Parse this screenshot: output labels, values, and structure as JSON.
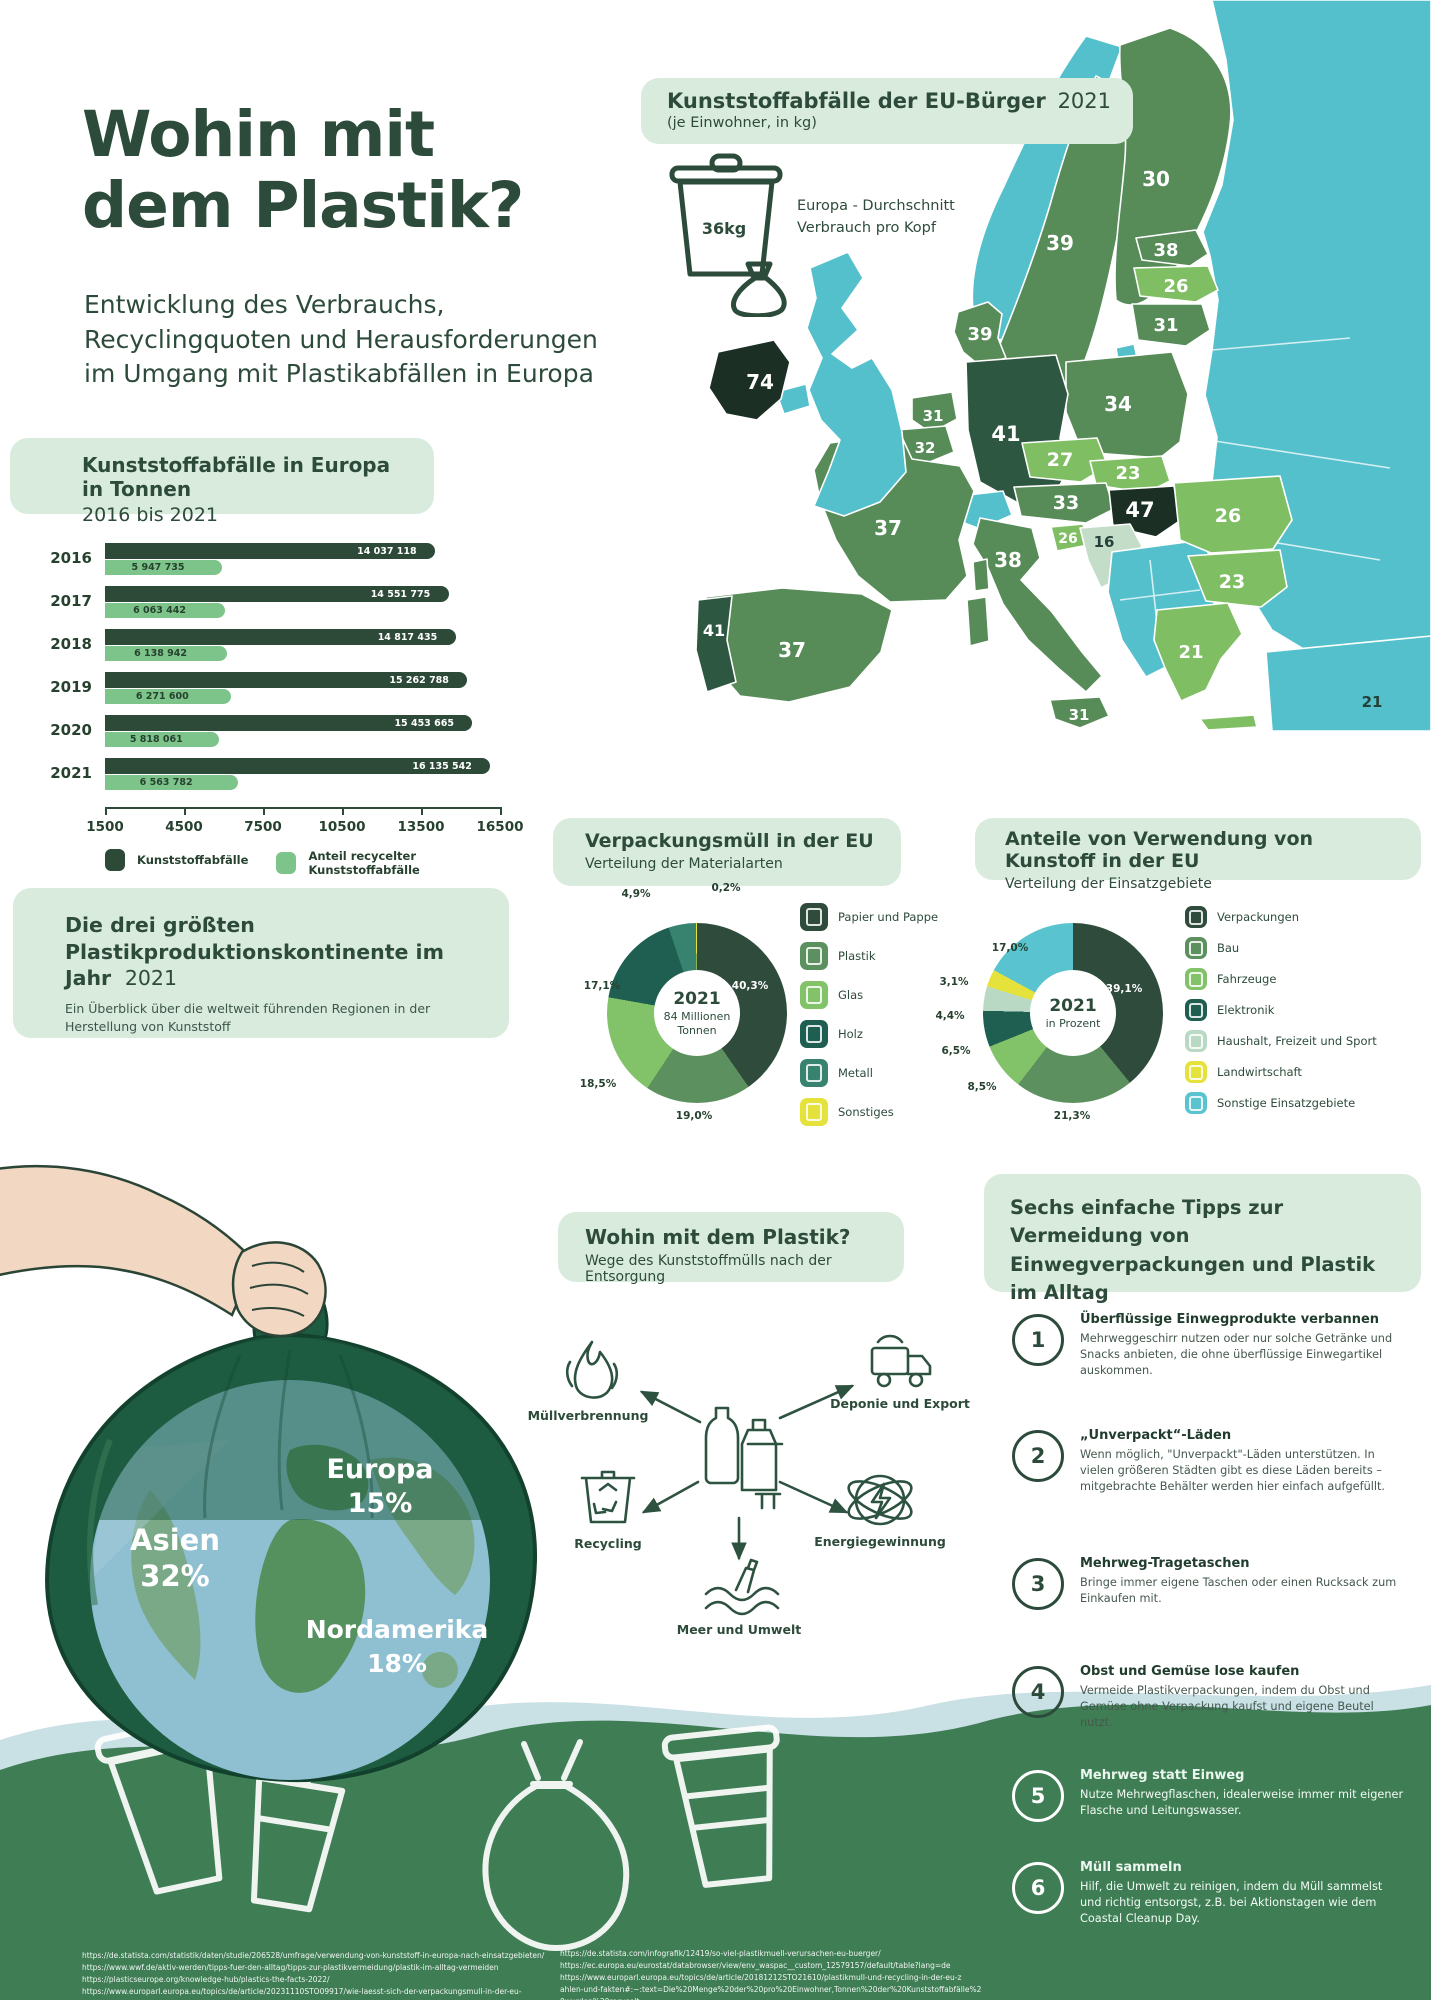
{
  "page": {
    "title": "Wohin mit dem Plastik?",
    "subtitle": "Entwicklung des Verbrauchs, Recyclingquoten und Herausforderungen im Umgang mit Plastikabfällen in Europa"
  },
  "colors": {
    "ink": "#2d4b3a",
    "mint": "#d9ebdd",
    "map_darkest": "#1b2f25",
    "map_dark": "#2e5741",
    "map_mid": "#578b58",
    "map_light": "#7fbe62",
    "map_pale": "#c3ddc9",
    "map_noneu": "#54c0cc",
    "bar_dark": "#2d4a39",
    "bar_light": "#7cc489",
    "wave_green": "#3f7e55",
    "wave_blue": "#c9e0e5",
    "yellow": "#e6e23c"
  },
  "chart_data": [
    {
      "type": "bar",
      "title": "Kunststoffabfälle in Europa in Tonnen",
      "subtitle": "2016 bis 2021",
      "categories": [
        "2016",
        "2017",
        "2018",
        "2019",
        "2020",
        "2021"
      ],
      "series": [
        {
          "name": "Kunststoffabfälle",
          "values": [
            14037118,
            14551775,
            14817435,
            15262788,
            15453665,
            16135542
          ]
        },
        {
          "name": "Anteil recycelter Kunststoffabfälle",
          "values": [
            5947735,
            6063442,
            6138942,
            6271600,
            5818061,
            6563782
          ]
        }
      ],
      "xticks": [
        1500,
        4500,
        7500,
        10500,
        13500,
        16500
      ],
      "axis_unit": "Tausend Tonnen",
      "legend_position": "bottom",
      "grid": false
    },
    {
      "type": "pie",
      "title": "Verpackungsmüll in der EU",
      "subtitle": "Verteilung der Materialarten",
      "center": [
        "2021",
        "84 Millionen",
        "Tonnen"
      ],
      "segments": [
        {
          "label": "Papier und Pappe",
          "value": 40.3,
          "pct": "40,3%",
          "color": "#2e4b3c"
        },
        {
          "label": "Plastik",
          "value": 19.0,
          "pct": "19,0%",
          "color": "#5c915f"
        },
        {
          "label": "Glas",
          "value": 18.5,
          "pct": "18,5%",
          "color": "#82c268"
        },
        {
          "label": "Holz",
          "value": 17.1,
          "pct": "17,1%",
          "color": "#1f5f52"
        },
        {
          "label": "Metall",
          "value": 4.9,
          "pct": "4,9%",
          "color": "#37836f"
        },
        {
          "label": "Sonstiges",
          "value": 0.2,
          "pct": "0,2%",
          "color": "#e6e23c"
        }
      ]
    },
    {
      "type": "pie",
      "title": "Anteile von Verwendung von Kunstoff in der EU",
      "subtitle": "Verteilung der Einsatzgebiete",
      "center": [
        "2021",
        "in Prozent"
      ],
      "segments": [
        {
          "label": "Verpackungen",
          "value": 39.1,
          "pct": "39,1%",
          "color": "#2e4b3c"
        },
        {
          "label": "Bau",
          "value": 21.3,
          "pct": "21,3%",
          "color": "#5c915f"
        },
        {
          "label": "Fahrzeuge",
          "value": 8.5,
          "pct": "8,5%",
          "color": "#82c268"
        },
        {
          "label": "Elektronik",
          "value": 6.5,
          "pct": "6,5%",
          "color": "#1f5f52"
        },
        {
          "label": "Haushalt, Freizeit und Sport",
          "value": 4.4,
          "pct": "4,4%",
          "color": "#bad9c4"
        },
        {
          "label": "Landwirtschaft",
          "value": 3.1,
          "pct": "3,1%",
          "color": "#e6e23c"
        },
        {
          "label": "Sonstige Einsatzgebiete",
          "value": 17.0,
          "pct": "17,0%",
          "color": "#59c3cf"
        }
      ]
    },
    {
      "type": "map-choropleth",
      "title": "Kunststoffabfälle der EU-Bürger",
      "year": "2021",
      "unit": "(je Einwohner, in kg)",
      "average_badge": "36kg",
      "average_caption": "Europa - Durchschnitt Verbrauch pro Kopf",
      "countries": [
        {
          "name": "Irland",
          "value": 74
        },
        {
          "name": "Finnland",
          "value": 30
        },
        {
          "name": "Schweden",
          "value": 39
        },
        {
          "name": "Dänemark",
          "value": 39
        },
        {
          "name": "Estland",
          "value": 38
        },
        {
          "name": "Lettland",
          "value": 26
        },
        {
          "name": "Litauen",
          "value": 31
        },
        {
          "name": "Niederlande",
          "value": 31
        },
        {
          "name": "Belgien",
          "value": 32
        },
        {
          "name": "Deutschland",
          "value": 41
        },
        {
          "name": "Polen",
          "value": 34
        },
        {
          "name": "Tschechien",
          "value": 27
        },
        {
          "name": "Slowakei",
          "value": 23
        },
        {
          "name": "Österreich",
          "value": 33
        },
        {
          "name": "Ungarn",
          "value": 47
        },
        {
          "name": "Slowenien",
          "value": 26
        },
        {
          "name": "Kroatien",
          "value": 16
        },
        {
          "name": "Rumänien",
          "value": 26
        },
        {
          "name": "Bulgarien",
          "value": 23
        },
        {
          "name": "Italien",
          "value": 38
        },
        {
          "name": "Frankreich",
          "value": 37
        },
        {
          "name": "Spanien",
          "value": 37
        },
        {
          "name": "Portugal",
          "value": 41
        },
        {
          "name": "Griechenland",
          "value": 21
        },
        {
          "name": "Malta",
          "value": 31
        },
        {
          "name": "Zypern",
          "value": 21
        }
      ]
    }
  ],
  "continents": {
    "heading_bold": "Die drei größten Plastikproduktionskontinente im Jahr",
    "heading_year": "2021",
    "sub": "Ein Überblick über die weltweit führenden Regionen in der Herstellung von Kunststoff",
    "items": [
      {
        "name": "Asien",
        "pct": "32%"
      },
      {
        "name": "Europa",
        "pct": "15%"
      },
      {
        "name": "Nordamerika",
        "pct": "18%"
      }
    ]
  },
  "flow": {
    "heading": "Wohin mit dem Plastik?",
    "sub": "Wege des Kunststoffmülls nach der Entsorgung",
    "nodes": [
      {
        "label": "Müllverbrennung"
      },
      {
        "label": "Deponie und Export"
      },
      {
        "label": "Recycling"
      },
      {
        "label": "Energiegewinnung"
      },
      {
        "label": "Meer und Umwelt"
      }
    ]
  },
  "tips": {
    "heading": "Sechs einfache Tipps zur Vermeidung von Einwegverpackungen und Plastik im Alltag",
    "items": [
      {
        "num": "1",
        "title": "Überflüssige Einwegprodukte verbannen",
        "body": "Mehrweggeschirr nutzen oder nur solche Getränke und Snacks anbieten, die ohne überflüssige Einwegartikel auskommen."
      },
      {
        "num": "2",
        "title": "„Unverpackt“-Läden",
        "body": "Wenn möglich, \"Unverpackt\"-Läden unterstützen. In vielen größeren Städten gibt es diese Läden bereits – mitgebrachte Behälter werden hier einfach aufgefüllt."
      },
      {
        "num": "3",
        "title": "Mehrweg-Tragetaschen",
        "body": "Bringe immer eigene Taschen oder einen Rucksack zum Einkaufen mit."
      },
      {
        "num": "4",
        "title": "Obst und Gemüse lose kaufen",
        "body": "Vermeide Plastikverpackungen, indem du Obst und Gemüse ohne Verpackung kaufst und eigene Beutel nutzt."
      },
      {
        "num": "5",
        "title": "Mehrweg statt Einweg",
        "body": "Nutze Mehrwegflaschen, idealerweise immer mit eigener Flasche und Leitungswasser."
      },
      {
        "num": "6",
        "title": "Müll sammeln",
        "body": "Hilf, die Umwelt zu reinigen, indem du Müll sammelst und richtig entsorgst, z.B. bei Aktionstagen wie dem Coastal Cleanup Day."
      }
    ]
  },
  "footer": {
    "left_lines": [
      "https://de.statista.com/statistik/daten/studie/206528/umfrage/verwendung-von-kunststoff-in-europa-nach-einsatzgebieten/",
      "https://www.wwf.de/aktiv-werden/tipps-fuer-den-alltag/tipps-zur-plastikvermeidung/plastik-im-alltag-vermeiden",
      "https://plasticseurope.org/knowledge-hub/plastics-the-facts-2022/",
      "https://www.europarl.europa.eu/topics/de/article/20231110STO09917/wie-laesst-sich-der-verpackungsmull-in-der-eu-reduzieren-infografik"
    ],
    "right_lines": [
      "https://de.statista.com/infografik/12419/so-viel-plastikmuell-verursachen-eu-buerger/",
      "https://ec.europa.eu/eurostat/databrowser/view/env_waspac__custom_12579157/default/table?lang=de",
      "https://www.europarl.europa.eu/topics/de/article/20181212STO21610/plastikmull-und-recycling-in-der-eu-z",
      "ahlen-und-fakten#:~:text=Die%20Menge%20der%20pro%20Einwohner,Tonnen%20der%20Kunststoffabfälle%2",
      "0wurden%20recycelt."
    ]
  }
}
